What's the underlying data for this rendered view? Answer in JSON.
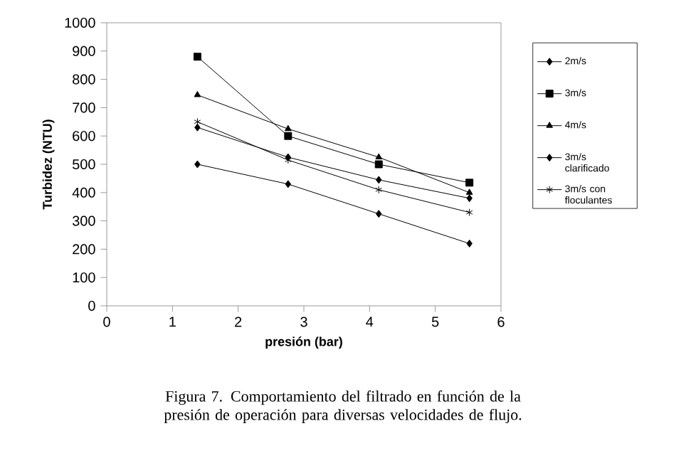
{
  "chart_data": {
    "type": "line",
    "xlabel": "presión (bar)",
    "ylabel": "Turbidez (NTU)",
    "x": [
      1.38,
      2.76,
      4.14,
      5.52
    ],
    "series": [
      {
        "name": "2m/s",
        "color": "#000000",
        "marker": "diamond",
        "values": [
          500,
          430,
          325,
          220
        ]
      },
      {
        "name": "3m/s",
        "color": "#000000",
        "marker": "square",
        "values": [
          880,
          600,
          500,
          435
        ]
      },
      {
        "name": "4m/s",
        "color": "#000000",
        "marker": "triangle",
        "values": [
          745,
          625,
          525,
          400
        ]
      },
      {
        "name": "3m/s clarificado",
        "color": "#000000",
        "marker": "diamond",
        "values": [
          630,
          525,
          445,
          380
        ]
      },
      {
        "name": "3m/s con floculantes",
        "color": "#000000",
        "marker": "cross",
        "values": [
          650,
          515,
          410,
          330
        ]
      }
    ],
    "xlim": [
      0,
      6
    ],
    "xticks": [
      0,
      1,
      2,
      3,
      4,
      5,
      6
    ],
    "ylim": [
      0,
      1000
    ],
    "yticks": [
      0,
      100,
      200,
      300,
      400,
      500,
      600,
      700,
      800,
      900,
      1000
    ],
    "grid": false,
    "legend": "right",
    "line_style": "solid",
    "annotations": [
      "Figura 7. Comportamiento del filtrado en función de la presión de operación para diversas velocidades de flujo."
    ]
  }
}
